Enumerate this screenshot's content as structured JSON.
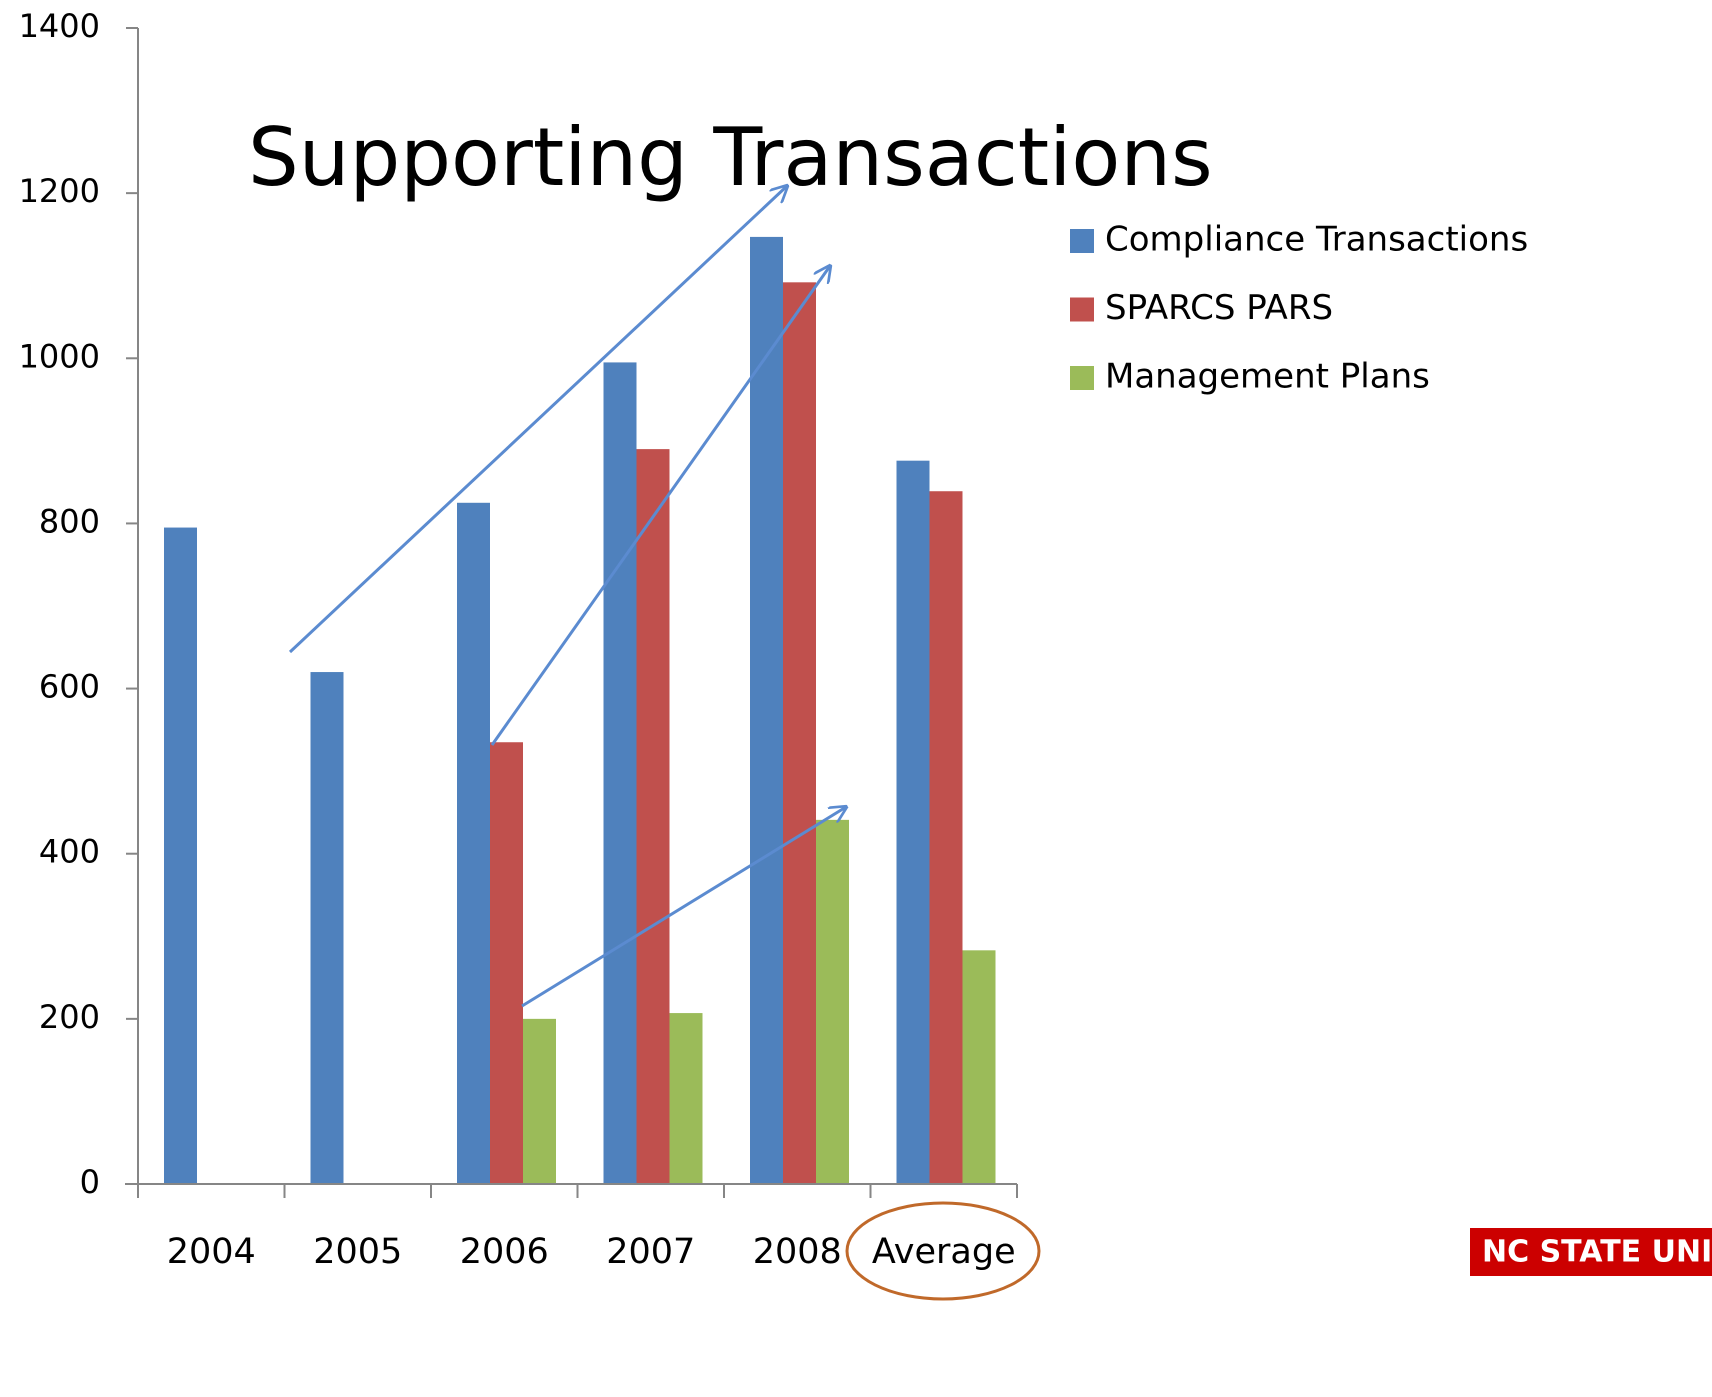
{
  "chart_data": {
    "type": "bar",
    "title": "Supporting Transactions",
    "categories": [
      "2004",
      "2005",
      "2006",
      "2007",
      "2008",
      "Average"
    ],
    "series": [
      {
        "name": "Compliance Transactions",
        "color": "#4f81bd",
        "values": [
          795,
          620,
          825,
          995,
          1147,
          876
        ]
      },
      {
        "name": "SPARCS PARS",
        "color": "#c0504d",
        "values": [
          null,
          null,
          535,
          890,
          1092,
          839
        ]
      },
      {
        "name": "Management Plans",
        "color": "#9bbb59",
        "values": [
          null,
          null,
          200,
          207,
          441,
          283
        ]
      }
    ],
    "ylim": [
      0,
      1400
    ],
    "yticks": [
      0,
      200,
      400,
      600,
      800,
      1000,
      1200,
      1400
    ],
    "grid": false,
    "legend": "right",
    "logo": "NC STATE UNIVER"
  }
}
